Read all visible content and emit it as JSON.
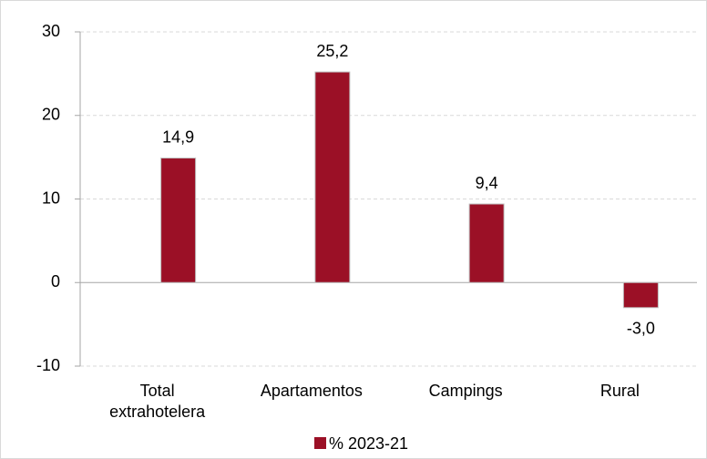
{
  "chart_data": {
    "type": "bar",
    "categories": [
      "Total extrahotelera",
      "Apartamentos",
      "Campings",
      "Rural"
    ],
    "series": [
      {
        "name": "% 2023-21",
        "color": "#9b1026",
        "values": [
          14.9,
          25.2,
          9.4,
          -3.0
        ],
        "value_labels": [
          "14,9",
          "25,2",
          "9,4",
          "-3,0"
        ]
      }
    ],
    "ylim": [
      -10,
      30
    ],
    "yticks": [
      -10,
      0,
      10,
      20,
      30
    ],
    "grid": true,
    "legend": "bottom"
  }
}
